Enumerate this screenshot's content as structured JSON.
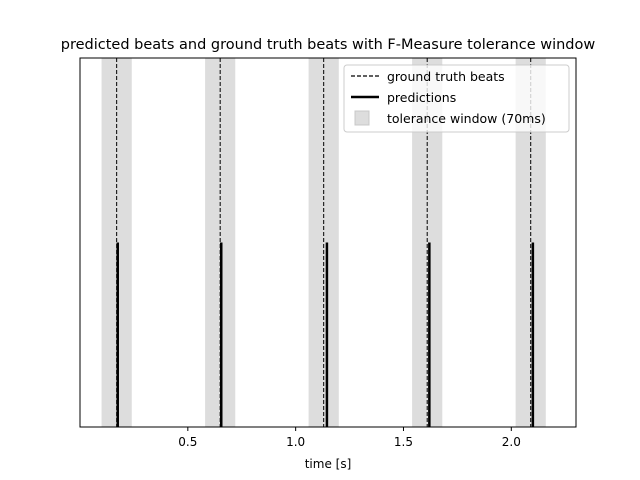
{
  "chart_data": {
    "type": "line",
    "title": "predicted beats and ground truth beats with F-Measure tolerance window",
    "xlabel": "time [s]",
    "ylabel": "",
    "xlim": [
      0.0,
      2.3
    ],
    "ylim": [
      0,
      1
    ],
    "xticks": [
      {
        "value": 0.5,
        "label": "0.5"
      },
      {
        "value": 1.0,
        "label": "1.0"
      },
      {
        "value": 1.5,
        "label": "1.5"
      },
      {
        "value": 2.0,
        "label": "2.0"
      }
    ],
    "grid": false,
    "legend_position": "top-right",
    "tolerance": 0.07,
    "series": [
      {
        "name": "ground truth beats",
        "style": "dashed",
        "color": "#000000",
        "x": [
          0.17,
          0.65,
          1.13,
          1.61,
          2.09
        ],
        "height": 1.0
      },
      {
        "name": "predictions",
        "style": "solid",
        "color": "#000000",
        "x": [
          0.175,
          0.655,
          1.145,
          1.62,
          2.1
        ],
        "height": 0.5
      },
      {
        "name": "tolerance window (70ms)",
        "style": "band",
        "color": "#dddddd"
      }
    ]
  }
}
